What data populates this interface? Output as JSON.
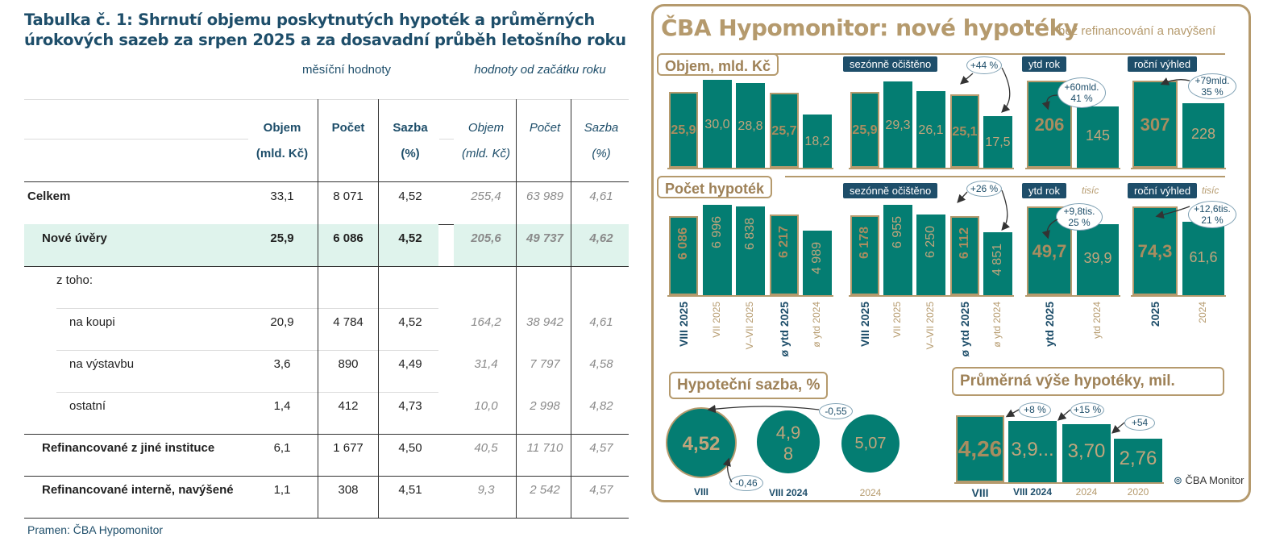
{
  "table": {
    "title": "Tabulka č. 1: Shrnutí objemu poskytnutých hypoték a průměrných úrokových sazeb za srpen 2025 a za dosavadní průběh letošního roku",
    "group_monthly": "měsíční hodnoty",
    "group_ytd": "hodnoty od začátku roku",
    "col_headers": [
      {
        "l1": "Objem",
        "l2": "(mld. Kč)"
      },
      {
        "l1": "Počet",
        "l2": ""
      },
      {
        "l1": "Sazba",
        "l2": "(%)"
      },
      {
        "l1": "Objem",
        "l2": "(mld. Kč)"
      },
      {
        "l1": "Počet",
        "l2": ""
      },
      {
        "l1": "Sazba",
        "l2": "(%)"
      }
    ],
    "rows": [
      {
        "label": "Celkem",
        "values": [
          "33,1",
          "8 071",
          "4,52",
          "255,4",
          "63 989",
          "4,61"
        ]
      },
      {
        "label": "Nové úvěry",
        "values": [
          "25,9",
          "6 086",
          "4,52",
          "205,6",
          "49 737",
          "4,62"
        ]
      },
      {
        "label": "z toho:",
        "values": [
          "",
          "",
          "",
          "",
          "",
          ""
        ]
      },
      {
        "label": "na koupi",
        "values": [
          "20,9",
          "4 784",
          "4,52",
          "164,2",
          "38 942",
          "4,61"
        ]
      },
      {
        "label": "na výstavbu",
        "values": [
          "3,6",
          "890",
          "4,49",
          "31,4",
          "7 797",
          "4,58"
        ]
      },
      {
        "label": "ostatní",
        "values": [
          "1,4",
          "412",
          "4,73",
          "10,0",
          "2 998",
          "4,82"
        ]
      },
      {
        "label": "Refinancované z jiné instituce",
        "values": [
          "6,1",
          "1 677",
          "4,50",
          "40,5",
          "11 710",
          "4,57"
        ]
      },
      {
        "label": "Refinancované interně, navýšené",
        "values": [
          "1,1",
          "308",
          "4,51",
          "9,3",
          "2 542",
          "4,57"
        ]
      }
    ],
    "source": "Pramen: ČBA Hypomonitor",
    "highlight_color": "#dff3ec"
  },
  "panel": {
    "title": "ČBA Hypomonitor: nové hypotéky",
    "subtitle": "bez refinancování a navýšení",
    "accent": "#b59a6d",
    "bar_color": "#047d72",
    "navy": "#1e4e6a",
    "logo_text": "ČBA Monitor"
  },
  "chart_data": [
    {
      "type": "bar",
      "section": "Objem, mld. Kč",
      "groups": [
        {
          "tag": "",
          "categories": [
            "VIII 2025",
            "VII 2025",
            "V–VII 2025",
            "ø ytd 2025",
            "ø ytd 2024"
          ],
          "values": [
            25.9,
            30.0,
            28.8,
            25.7,
            18.2
          ],
          "labels": [
            "25,9",
            "30,0",
            "28,8",
            "25,7",
            "18,2"
          ]
        },
        {
          "tag": "sezónně očištěno",
          "annotation": "+44 %",
          "categories": [
            "VIII 2025",
            "VII 2025",
            "V–VII 2025",
            "ø ytd 2025",
            "ø ytd 2024"
          ],
          "values": [
            25.9,
            29.3,
            26.1,
            25.1,
            17.5
          ],
          "labels": [
            "25,9",
            "29,3",
            "26,1",
            "25,1",
            "17,5"
          ]
        },
        {
          "tag": "ytd rok",
          "annotation": "+60mld.\n41 %",
          "categories": [
            "ytd 2025",
            "ytd 2024"
          ],
          "values": [
            206,
            145
          ],
          "labels": [
            "206",
            "145"
          ]
        },
        {
          "tag": "roční výhled",
          "annotation": "+79mld.\n35 %",
          "categories": [
            "2025",
            "2024"
          ],
          "values": [
            307,
            228
          ],
          "labels": [
            "307",
            "228"
          ]
        }
      ]
    },
    {
      "type": "bar",
      "section": "Počet hypoték",
      "groups": [
        {
          "tag": "",
          "categories": [
            "VIII 2025",
            "VII 2025",
            "V–VII 2025",
            "ø ytd 2025",
            "ø ytd 2024"
          ],
          "values": [
            6086,
            6996,
            6838,
            6217,
            4989
          ],
          "labels": [
            "6 086",
            "6 996",
            "6 838",
            "6 217",
            "4 989"
          ]
        },
        {
          "tag": "sezónně očištěno",
          "annotation": "+26 %",
          "categories": [
            "VIII 2025",
            "VII 2025",
            "V–VII 2025",
            "ø ytd 2025",
            "ø ytd 2024"
          ],
          "values": [
            6178,
            6955,
            6250,
            6112,
            4851
          ],
          "labels": [
            "6 178",
            "6 955",
            "6 250",
            "6 112",
            "4 851"
          ]
        },
        {
          "tag": "ytd rok",
          "unit": "tisíc",
          "annotation": "+9,8tis.\n25 %",
          "categories": [
            "ytd 2025",
            "ytd 2024"
          ],
          "values": [
            49.7,
            39.9
          ],
          "labels": [
            "49,7",
            "39,9"
          ]
        },
        {
          "tag": "roční výhled",
          "unit": "tisíc",
          "annotation": "+12,6tis.\n21 %",
          "categories": [
            "2025",
            "2024"
          ],
          "values": [
            74.3,
            61.6
          ],
          "labels": [
            "74,3",
            "61,6"
          ]
        }
      ]
    },
    {
      "type": "bubble",
      "section": "Hypoteční sazba, %",
      "categories": [
        "VIII",
        "VIII 2024",
        "2024"
      ],
      "values": [
        4.52,
        4.98,
        5.07
      ],
      "labels": [
        "4,52",
        "4,9\n8",
        "5,07"
      ],
      "annotations": [
        "-0,55",
        "-0,46"
      ]
    },
    {
      "type": "bar",
      "section": "Průměrná výše hypotéky, mil.",
      "categories": [
        "VIII",
        "VIII 2024",
        "2024",
        "2020"
      ],
      "values": [
        4.26,
        3.9,
        3.7,
        2.76
      ],
      "labels": [
        "4,26",
        "3,9...",
        "3,70",
        "2,76"
      ],
      "annotations": [
        "+8 %",
        "+15 %",
        "+54"
      ]
    }
  ]
}
